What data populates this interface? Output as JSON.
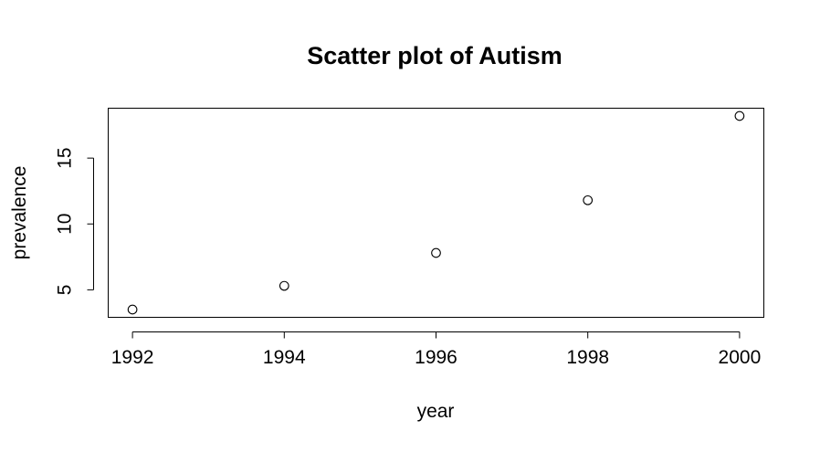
{
  "chart_data": {
    "type": "scatter",
    "title": "Scatter plot of Autism",
    "xlabel": "year",
    "ylabel": "prevalence",
    "x": [
      1992,
      1994,
      1996,
      1998,
      2000
    ],
    "y": [
      3.5,
      5.3,
      7.8,
      11.8,
      18.2
    ],
    "xlim": [
      1992,
      2000
    ],
    "ylim": [
      3.5,
      18.2
    ],
    "x_ticks": [
      1992,
      1994,
      1996,
      1998,
      2000
    ],
    "y_ticks": [
      5,
      10,
      15
    ],
    "marker": "open-circle",
    "point_color": "#000000",
    "grid": false,
    "legend": false
  }
}
